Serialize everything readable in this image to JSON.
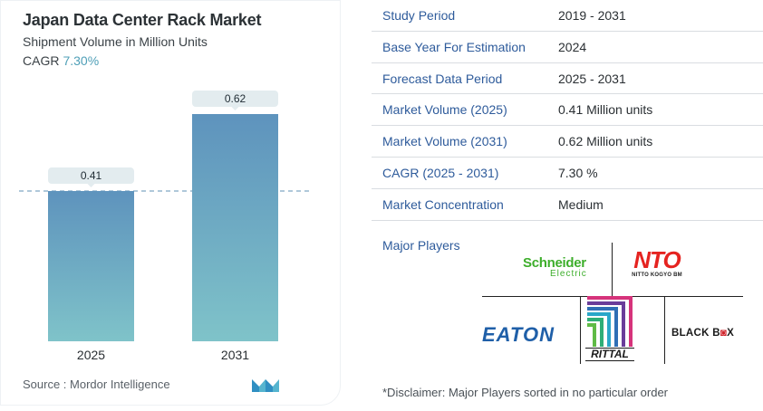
{
  "header": {
    "title": "Japan Data Center Rack Market",
    "subtitle": "Shipment Volume in Million Units",
    "cagr_label": "CAGR",
    "cagr_value": "7.30%"
  },
  "chart_data": {
    "type": "bar",
    "categories": [
      "2025",
      "2031"
    ],
    "values": [
      0.41,
      0.62
    ],
    "data_labels": [
      "0.41",
      "0.62"
    ],
    "title": "Japan Data Center Rack Market",
    "subtitle": "Shipment Volume in Million Units",
    "xlabel": "",
    "ylabel": "",
    "ylim": [
      0,
      0.62
    ],
    "grid": false,
    "reference_line": 0.41,
    "colors": {
      "bar_top": "#5e93bd",
      "bar_bottom": "#7fc3c9",
      "label_bg": "#e3ecef",
      "ref_line": "#7fa6c4"
    }
  },
  "footer": {
    "source": "Source :  Mordor Intelligence"
  },
  "table": {
    "rows": [
      {
        "key": "Study Period",
        "value": "2019 - 2031"
      },
      {
        "key": "Base Year For Estimation",
        "value": "2024"
      },
      {
        "key": "Forecast Data Period",
        "value": "2025 - 2031"
      },
      {
        "key": "Market Volume (2025)",
        "value": "0.41 Million units"
      },
      {
        "key": "Market Volume (2031)",
        "value": "0.62 Million units"
      },
      {
        "key": "CAGR (2025 - 2031)",
        "value": "7.30 %"
      },
      {
        "key": "Market Concentration",
        "value": "Medium"
      }
    ]
  },
  "players": {
    "label": "Major Players",
    "schneider_1": "Schneider",
    "schneider_2": "Electric",
    "nito_1": "NTO",
    "nito_2": "NITTO KOGYO BM",
    "eaton": "EATON",
    "rittal": "RITTAL",
    "blackbox_1": "BLACK B",
    "blackbox_2": "X"
  },
  "disclaimer": "*Disclaimer: Major Players sorted in no particular order"
}
